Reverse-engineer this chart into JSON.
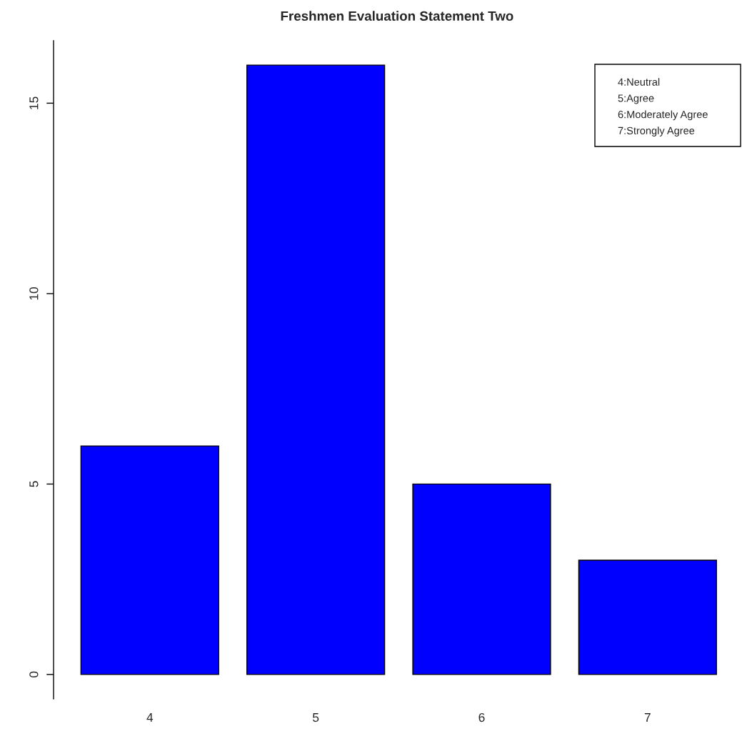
{
  "chart_data": {
    "type": "bar",
    "title": "Freshmen Evaluation Statement Two",
    "categories": [
      "4",
      "5",
      "6",
      "7"
    ],
    "values": [
      6,
      16,
      5,
      3
    ],
    "color": "#0000ff",
    "ylim": [
      -0.64,
      16.64
    ],
    "yticks": [
      0,
      5,
      10,
      15
    ],
    "grid": false,
    "annotations": [
      "4:Neutral",
      "5:Agree",
      "6:Moderately Agree",
      "7:Strongly Agree"
    ]
  }
}
